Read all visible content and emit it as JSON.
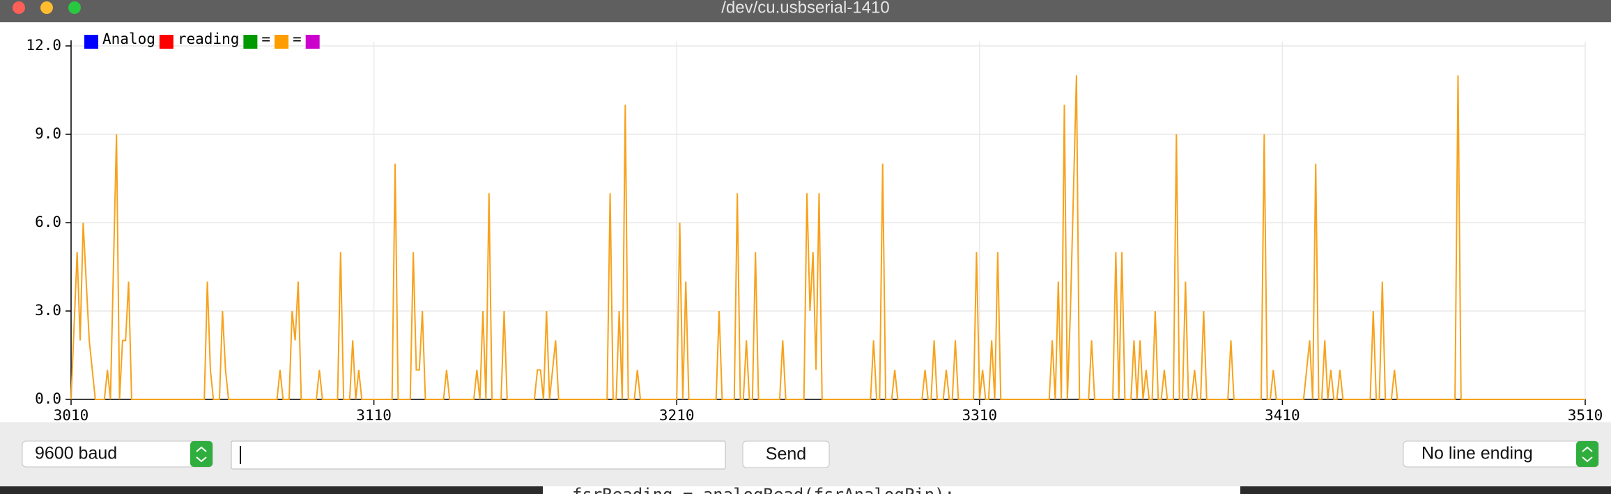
{
  "window": {
    "title": "/dev/cu.usbserial-1410"
  },
  "chart_data": {
    "type": "line",
    "legend": [
      {
        "name": "Analog",
        "color": "#0000ff"
      },
      {
        "name": "reading",
        "color": "#ff0000"
      },
      {
        "name": "=",
        "color": "#009900"
      },
      {
        "name": "=",
        "color": "#ff9c00"
      },
      {
        "color": "#cc00cc"
      }
    ],
    "x": [
      3010,
      3012,
      3013,
      3014,
      3015,
      3016,
      3018,
      3021,
      3022,
      3023,
      3025,
      3026,
      3027,
      3028,
      3029,
      3030,
      3054,
      3055,
      3056,
      3057,
      3059,
      3060,
      3061,
      3062,
      3078,
      3079,
      3080,
      3082,
      3083,
      3084,
      3085,
      3086,
      3091,
      3092,
      3093,
      3098,
      3099,
      3100,
      3102,
      3103,
      3104,
      3105,
      3106,
      3116,
      3117,
      3118,
      3122,
      3123,
      3124,
      3125,
      3126,
      3127,
      3133,
      3134,
      3135,
      3143,
      3144,
      3145,
      3146,
      3147,
      3148,
      3149,
      3152,
      3153,
      3154,
      3163,
      3164,
      3165,
      3166,
      3167,
      3168,
      3170,
      3171,
      3187,
      3188,
      3189,
      3190,
      3191,
      3192,
      3193,
      3194,
      3196,
      3197,
      3198,
      3210,
      3211,
      3212,
      3213,
      3214,
      3223,
      3224,
      3225,
      3229,
      3230,
      3231,
      3232,
      3233,
      3234,
      3235,
      3236,
      3237,
      3244,
      3245,
      3246,
      3252,
      3253,
      3254,
      3255,
      3256,
      3257,
      3258,
      3274,
      3275,
      3276,
      3277,
      3278,
      3279,
      3281,
      3282,
      3283,
      3291,
      3292,
      3293,
      3294,
      3295,
      3296,
      3298,
      3299,
      3300,
      3301,
      3302,
      3303,
      3308,
      3309,
      3310,
      3311,
      3312,
      3313,
      3314,
      3315,
      3316,
      3317,
      3333,
      3334,
      3335,
      3336,
      3337,
      3338,
      3339,
      3340,
      3342,
      3343,
      3346,
      3347,
      3348,
      3354,
      3355,
      3356,
      3357,
      3358,
      3360,
      3361,
      3362,
      3363,
      3364,
      3365,
      3366,
      3367,
      3368,
      3369,
      3370,
      3371,
      3372,
      3374,
      3375,
      3376,
      3377,
      3378,
      3379,
      3380,
      3381,
      3382,
      3383,
      3384,
      3385,
      3392,
      3393,
      3394,
      3403,
      3404,
      3405,
      3406,
      3407,
      3408,
      3417,
      3418,
      3419,
      3420,
      3421,
      3422,
      3423,
      3424,
      3425,
      3426,
      3427,
      3428,
      3429,
      3430,
      3438,
      3439,
      3440,
      3441,
      3442,
      3443,
      3444,
      3446,
      3447,
      3448,
      3467,
      3468,
      3469,
      3510
    ],
    "series": [
      {
        "color": "#f7a21b",
        "values": [
          0,
          5,
          2,
          6,
          4,
          2,
          0,
          0,
          1,
          0,
          9,
          0,
          2,
          2,
          4,
          0,
          0,
          4,
          1,
          0,
          0,
          3,
          1,
          0,
          0,
          1,
          0,
          0,
          3,
          2,
          4,
          0,
          0,
          1,
          0,
          0,
          5,
          0,
          0,
          2,
          0,
          1,
          0,
          0,
          8,
          0,
          0,
          5,
          1,
          1,
          3,
          0,
          0,
          1,
          0,
          0,
          1,
          0,
          3,
          0,
          7,
          0,
          0,
          3,
          0,
          0,
          1,
          1,
          0,
          3,
          0,
          2,
          0,
          0,
          7,
          0,
          0,
          3,
          0,
          10,
          0,
          0,
          1,
          0,
          0,
          6,
          0,
          4,
          0,
          0,
          3,
          0,
          0,
          7,
          0,
          0,
          2,
          0,
          0,
          5,
          0,
          0,
          2,
          0,
          0,
          7,
          3,
          5,
          1,
          7,
          0,
          0,
          2,
          0,
          0,
          8,
          0,
          0,
          1,
          0,
          0,
          1,
          0,
          0,
          2,
          0,
          0,
          1,
          0,
          0,
          2,
          0,
          0,
          5,
          0,
          1,
          0,
          0,
          2,
          0,
          5,
          0,
          0,
          2,
          0,
          4,
          0,
          10,
          0,
          3,
          11,
          0,
          0,
          2,
          0,
          0,
          5,
          0,
          5,
          0,
          0,
          2,
          0,
          2,
          0,
          1,
          0,
          0,
          3,
          0,
          0,
          1,
          0,
          0,
          9,
          0,
          0,
          4,
          0,
          0,
          1,
          0,
          0,
          3,
          0,
          0,
          2,
          0,
          0,
          9,
          0,
          0,
          1,
          0,
          0,
          1,
          2,
          0,
          8,
          0,
          0,
          2,
          0,
          1,
          0,
          0,
          1,
          0,
          0,
          0,
          3,
          0,
          0,
          4,
          0,
          0,
          1,
          0,
          0,
          11,
          0,
          0
        ]
      }
    ],
    "xlim": [
      3010,
      3510
    ],
    "xticks": [
      3010,
      3110,
      3210,
      3310,
      3410,
      3510
    ],
    "ylim": [
      0,
      12
    ],
    "yticks": [
      {
        "value": 0,
        "label": "0.0"
      },
      {
        "value": 3,
        "label": "3.0"
      },
      {
        "value": 6,
        "label": "6.0"
      },
      {
        "value": 9,
        "label": "9.0"
      },
      {
        "value": 12,
        "label": "12.0"
      }
    ],
    "grid": true
  },
  "controls": {
    "baud": "9600 baud",
    "send": "Send",
    "line_ending": "No line ending"
  },
  "background_code": "fsrReading = analogRead(fsrAnalogPin);"
}
